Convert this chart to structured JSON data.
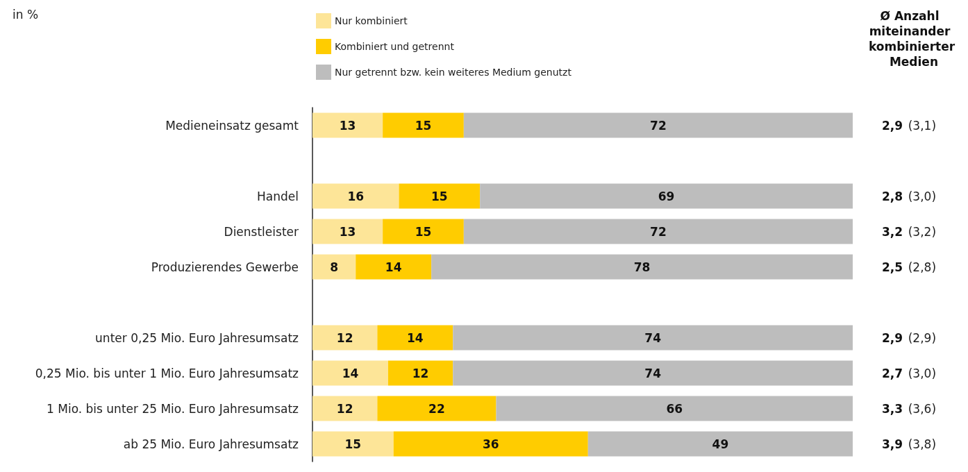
{
  "chart_data": {
    "type": "bar",
    "orientation": "horizontal",
    "stacked": true,
    "subtitle": "in %",
    "y2label": "Ø Anzahl miteinander kombinierter Medien",
    "categories": [
      "Medieneinsatz gesamt",
      null,
      "Handel",
      "Dienstleister",
      "Produzierendes Gewerbe",
      null,
      "unter 0,25 Mio. Euro Jahresumsatz",
      "0,25 Mio. bis unter 1 Mio. Euro Jahresumsatz",
      "1 Mio. bis unter 25 Mio. Euro Jahresumsatz",
      "ab 25 Mio. Euro Jahresumsatz"
    ],
    "series": [
      {
        "name": "Nur kombiniert",
        "color": "#fde598",
        "values": [
          13,
          null,
          16,
          13,
          8,
          null,
          12,
          14,
          12,
          15
        ]
      },
      {
        "name": "Kombiniert und getrennt",
        "color": "#ffcc00",
        "values": [
          15,
          null,
          15,
          15,
          14,
          null,
          14,
          12,
          22,
          36
        ]
      },
      {
        "name": "Nur getrennt bzw. kein weiteres Medium genutzt",
        "color": "#bdbdbd",
        "values": [
          72,
          null,
          69,
          72,
          78,
          null,
          74,
          74,
          66,
          49
        ]
      }
    ],
    "xlim": [
      0,
      100
    ],
    "tick_labels": "y",
    "data_labels": true,
    "legend": "top",
    "grid": false,
    "annotations": [
      "2,9 (3,1)",
      "2,8 (3,0)",
      "3,2 (3,2)",
      "2,5 (2,8)",
      "2,9 (2,9)",
      "2,7 (3,0)",
      "3,3 (3,6)",
      "3,9 (3,8)"
    ]
  }
}
